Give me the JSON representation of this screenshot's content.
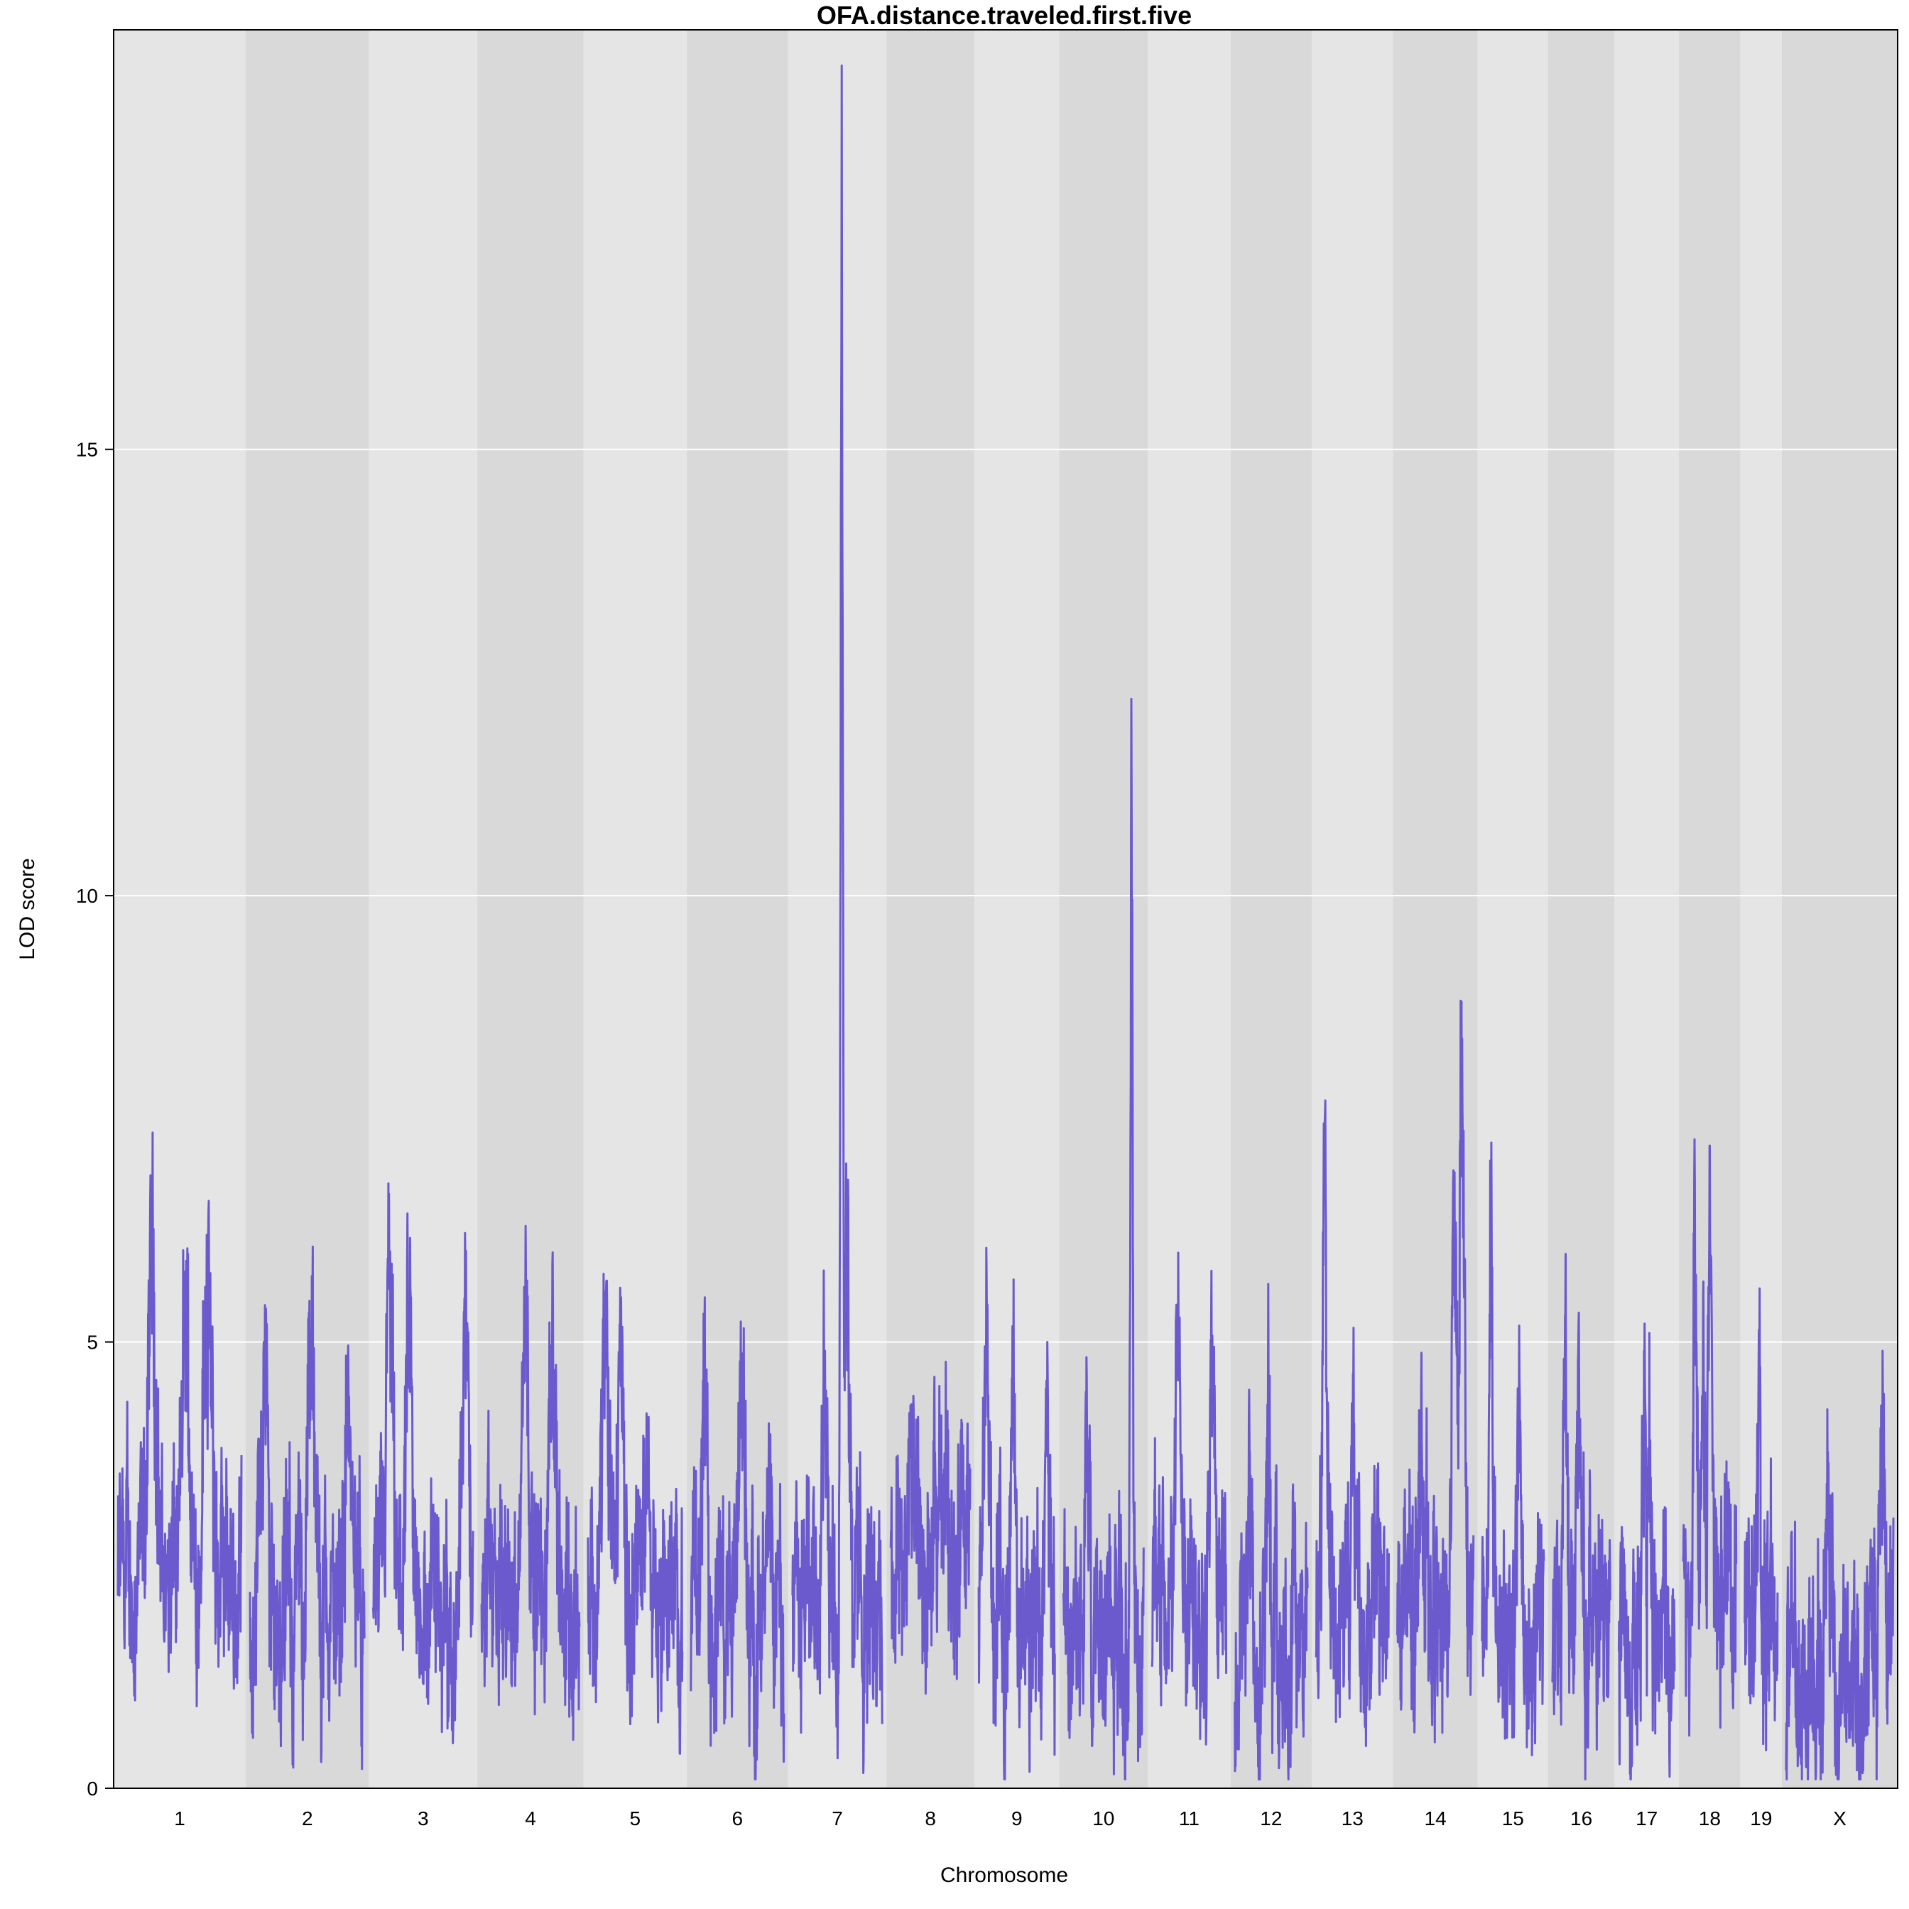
{
  "chart_data": {
    "type": "line",
    "title": "OFA.distance.traveled.first.five",
    "xlabel": "Chromosome",
    "ylabel": "LOD score",
    "ylim": [
      0,
      19.7
    ],
    "yticks": [
      0,
      5,
      10,
      15
    ],
    "grid": "horizontal",
    "line_color": "#6A5ACD",
    "band_colors": [
      "#E5E5E5",
      "#D9D9D9"
    ],
    "chromosomes": [
      {
        "name": "1",
        "length": 195,
        "baseline": 2.3,
        "peaks": [
          [
            0.28,
            6.3
          ],
          [
            0.72,
            6.2
          ],
          [
            0.55,
            5.3
          ]
        ]
      },
      {
        "name": "2",
        "length": 182,
        "baseline": 2.0,
        "peaks": [
          [
            0.12,
            5.0
          ],
          [
            0.53,
            5.0
          ],
          [
            0.85,
            4.5
          ]
        ]
      },
      {
        "name": "3",
        "length": 160,
        "baseline": 2.0,
        "peaks": [
          [
            0.16,
            5.8
          ],
          [
            0.35,
            5.0
          ],
          [
            0.92,
            6.2
          ]
        ]
      },
      {
        "name": "4",
        "length": 157,
        "baseline": 2.1,
        "peaks": [
          [
            0.45,
            6.3
          ],
          [
            0.73,
            5.4
          ]
        ]
      },
      {
        "name": "5",
        "length": 152,
        "baseline": 2.2,
        "peaks": [
          [
            0.18,
            5.4
          ],
          [
            0.35,
            5.5
          ],
          [
            0.62,
            4.2
          ]
        ]
      },
      {
        "name": "6",
        "length": 150,
        "baseline": 2.0,
        "peaks": [
          [
            0.15,
            5.5
          ],
          [
            0.55,
            4.8
          ]
        ]
      },
      {
        "name": "7",
        "length": 145,
        "baseline": 2.2,
        "peaks": [
          [
            0.55,
            19.3
          ],
          [
            0.6,
            7.0
          ],
          [
            0.35,
            5.8
          ]
        ]
      },
      {
        "name": "8",
        "length": 130,
        "baseline": 2.6,
        "peaks": [
          [
            0.25,
            4.1
          ],
          [
            0.7,
            4.0
          ]
        ]
      },
      {
        "name": "9",
        "length": 125,
        "baseline": 2.0,
        "peaks": [
          [
            0.1,
            5.7
          ],
          [
            0.45,
            4.5
          ],
          [
            0.9,
            5.0
          ]
        ]
      },
      {
        "name": "10",
        "length": 131,
        "baseline": 1.8,
        "peaks": [
          [
            0.85,
            11.0
          ],
          [
            0.3,
            3.9
          ]
        ]
      },
      {
        "name": "11",
        "length": 122,
        "baseline": 2.3,
        "peaks": [
          [
            0.35,
            6.0
          ],
          [
            0.8,
            5.0
          ]
        ]
      },
      {
        "name": "12",
        "length": 120,
        "baseline": 1.6,
        "peaks": [
          [
            0.45,
            4.3
          ],
          [
            0.22,
            3.5
          ]
        ]
      },
      {
        "name": "13",
        "length": 120,
        "baseline": 2.0,
        "peaks": [
          [
            0.12,
            6.8
          ],
          [
            0.5,
            3.7
          ]
        ]
      },
      {
        "name": "14",
        "length": 125,
        "baseline": 2.0,
        "peaks": [
          [
            0.85,
            8.4
          ],
          [
            0.75,
            6.9
          ],
          [
            0.3,
            4.0
          ]
        ]
      },
      {
        "name": "15",
        "length": 104,
        "baseline": 1.7,
        "peaks": [
          [
            0.15,
            6.9
          ],
          [
            0.6,
            4.8
          ]
        ]
      },
      {
        "name": "16",
        "length": 98,
        "baseline": 1.7,
        "peaks": [
          [
            0.22,
            5.3
          ],
          [
            0.45,
            5.2
          ]
        ]
      },
      {
        "name": "17",
        "length": 95,
        "baseline": 1.8,
        "peaks": [
          [
            0.55,
            5.1
          ],
          [
            0.45,
            4.9
          ]
        ]
      },
      {
        "name": "18",
        "length": 91,
        "baseline": 2.2,
        "peaks": [
          [
            0.22,
            6.8
          ],
          [
            0.5,
            7.2
          ],
          [
            0.38,
            5.0
          ]
        ]
      },
      {
        "name": "19",
        "length": 61,
        "baseline": 1.8,
        "peaks": [
          [
            0.45,
            5.6
          ]
        ]
      },
      {
        "name": "X",
        "length": 171,
        "baseline": 1.3,
        "peaks": [
          [
            0.9,
            4.9
          ],
          [
            0.4,
            3.2
          ]
        ]
      }
    ]
  }
}
